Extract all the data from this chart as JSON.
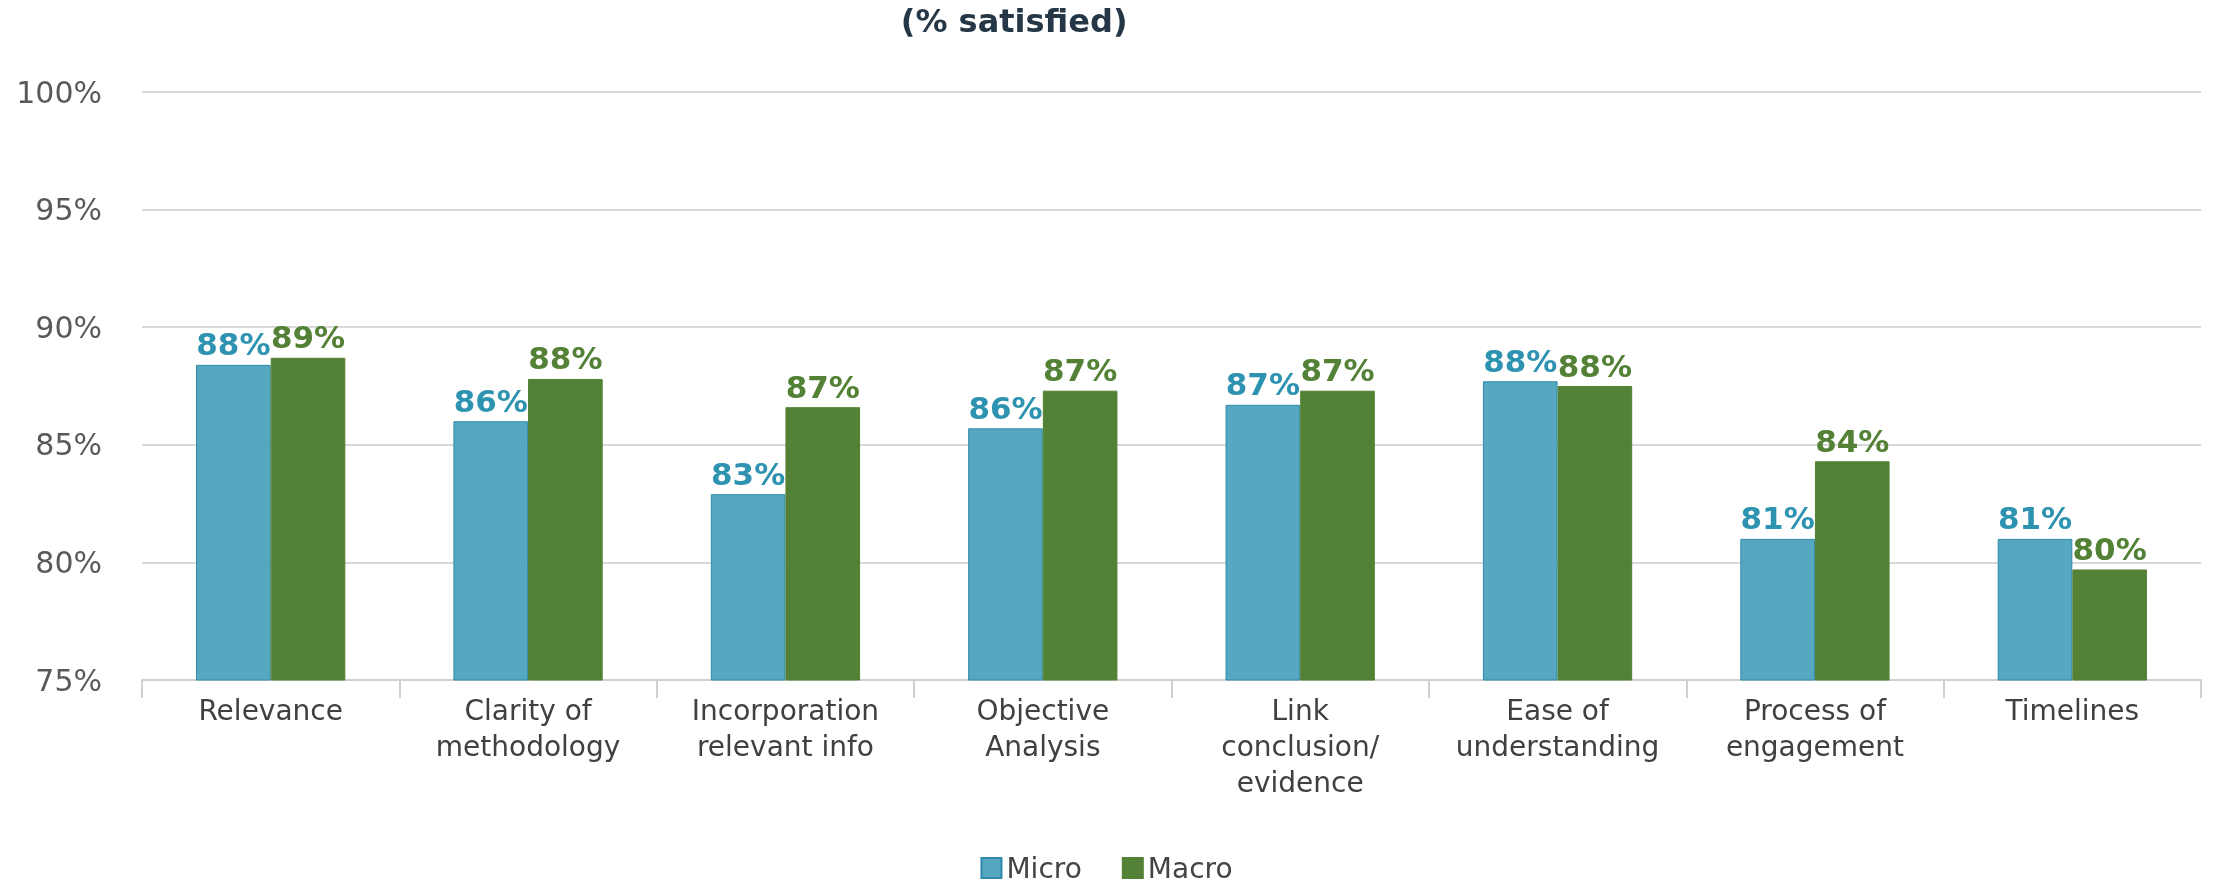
{
  "chart_data": {
    "type": "bar",
    "title": "(% satisfied)",
    "categories": [
      "Relevance",
      "Clarity of\nmethodology",
      "Incorporation\nrelevant info",
      "Objective\nAnalysis",
      "Link\nconclusion/\nevidence",
      "Ease of\nunderstanding",
      "Process of\nengagement",
      "Timelines"
    ],
    "series": [
      {
        "name": "Micro",
        "color": "#56a8c0",
        "values": [
          88.4,
          86.0,
          82.9,
          85.7,
          86.7,
          87.7,
          81.0,
          81.0
        ],
        "value_labels": [
          "88%",
          "86%",
          "83%",
          "86%",
          "87%",
          "88%",
          "81%",
          "81%"
        ]
      },
      {
        "name": "Macro",
        "color": "#538135",
        "values": [
          88.7,
          87.8,
          86.6,
          87.3,
          87.3,
          87.5,
          84.3,
          79.7
        ],
        "value_labels": [
          "89%",
          "88%",
          "87%",
          "87%",
          "87%",
          "88%",
          "84%",
          "80%"
        ]
      }
    ],
    "ylim": [
      75,
      100
    ],
    "yticks": [
      {
        "value": 75,
        "label": "75%"
      },
      {
        "value": 80,
        "label": "80%"
      },
      {
        "value": 85,
        "label": "85%"
      },
      {
        "value": 90,
        "label": "90%"
      },
      {
        "value": 95,
        "label": "95%"
      },
      {
        "value": 100,
        "label": "100%"
      }
    ],
    "grid": "y",
    "legend": "bottom"
  }
}
